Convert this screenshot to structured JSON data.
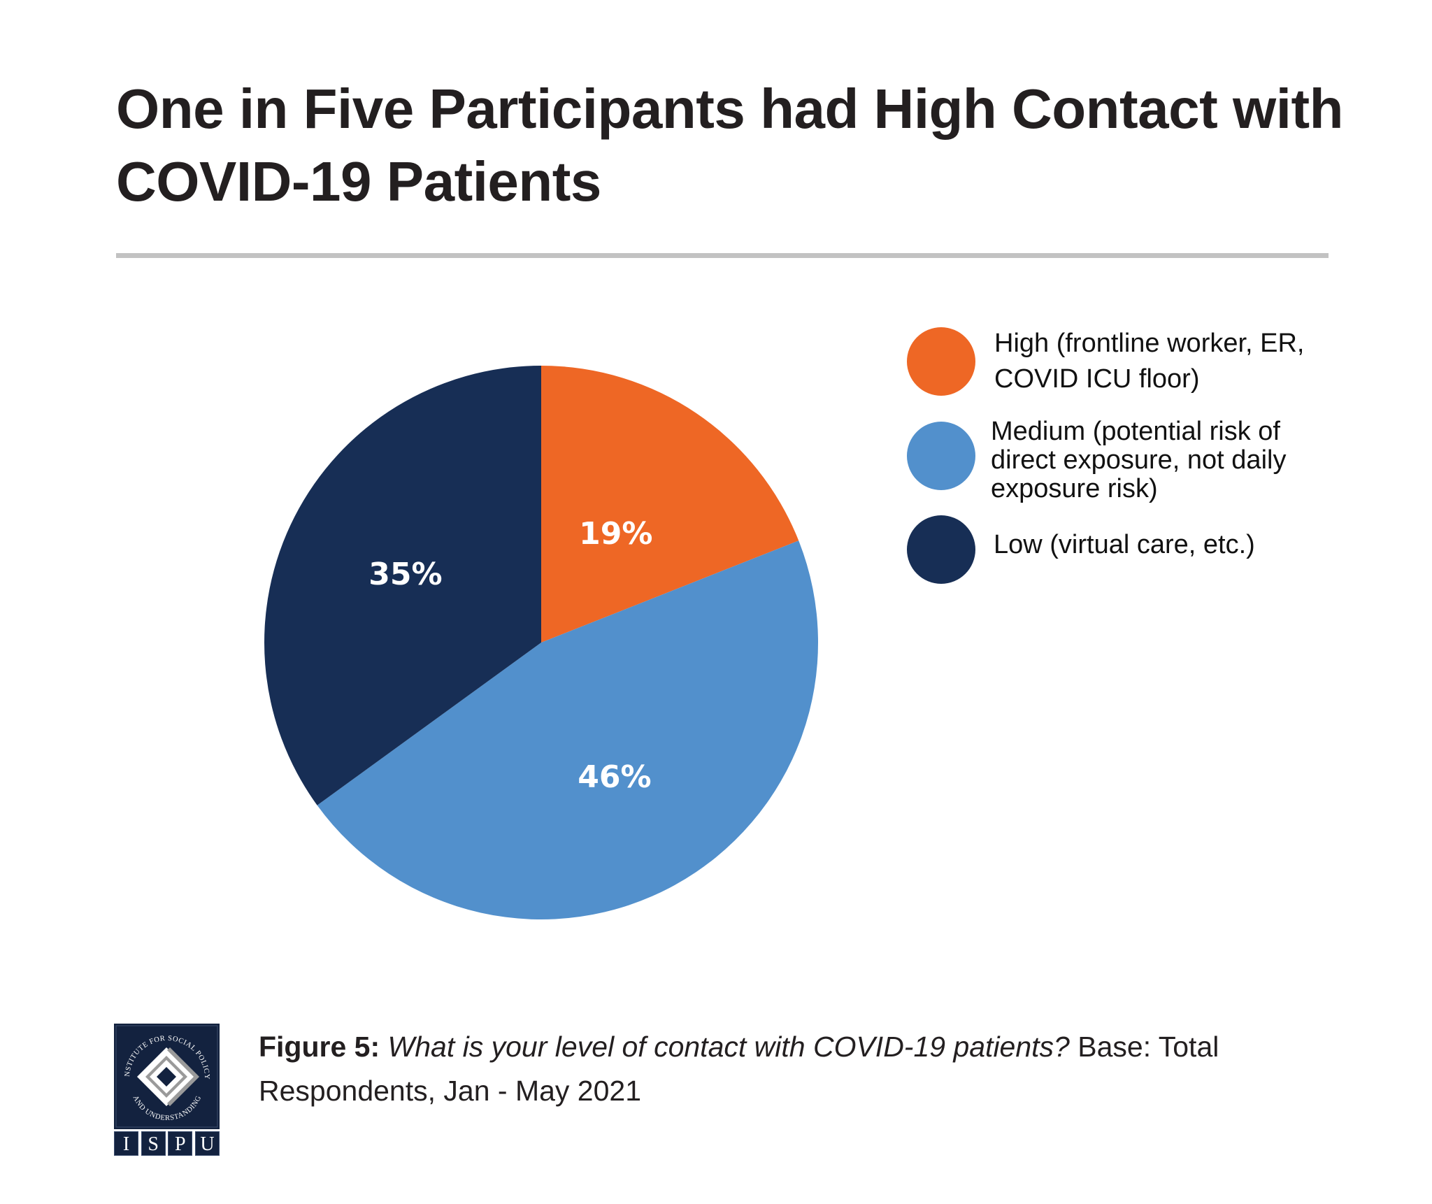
{
  "header": {
    "title": "One in Five Participants had High Contact with COVID-19 Patients"
  },
  "chart_data": {
    "type": "pie",
    "title": "One in Five Participants had High Contact with COVID-19 Patients",
    "start_angle_deg": 0,
    "direction": "clockwise",
    "slices": [
      {
        "key": "high",
        "label": "High (frontline worker, ER, COVID ICU floor)",
        "value": 19,
        "display": "19%",
        "color": "#EE6725"
      },
      {
        "key": "medium",
        "label": "Medium (potential risk of direct exposure, not daily exposure risk)",
        "value": 46,
        "display": "46%",
        "color": "#5290CC"
      },
      {
        "key": "low",
        "label": "Low (virtual care, etc.)",
        "value": 35,
        "display": "35%",
        "color": "#172E55"
      }
    ],
    "legend_position": "right",
    "units": "percent"
  },
  "legend": {
    "items": [
      {
        "label": "High (frontline worker, ER,\nCOVID ICU floor)",
        "color": "#EE6725"
      },
      {
        "label": "Medium (potential risk of\ndirect exposure, not daily\nexposure risk)",
        "color": "#5290CC"
      },
      {
        "label": "Low (virtual care, etc.)",
        "color": "#172E55"
      }
    ]
  },
  "footer": {
    "figure_label": "Figure 5:",
    "question": "What is your level of contact with COVID-19 patients?",
    "base": "Base: Total Respondents, Jan - May 2021",
    "logo": {
      "ring_text": "INSTITUTE FOR SOCIAL POLICY AND UNDERSTANDING",
      "letters": [
        "I",
        "S",
        "P",
        "U"
      ]
    }
  }
}
